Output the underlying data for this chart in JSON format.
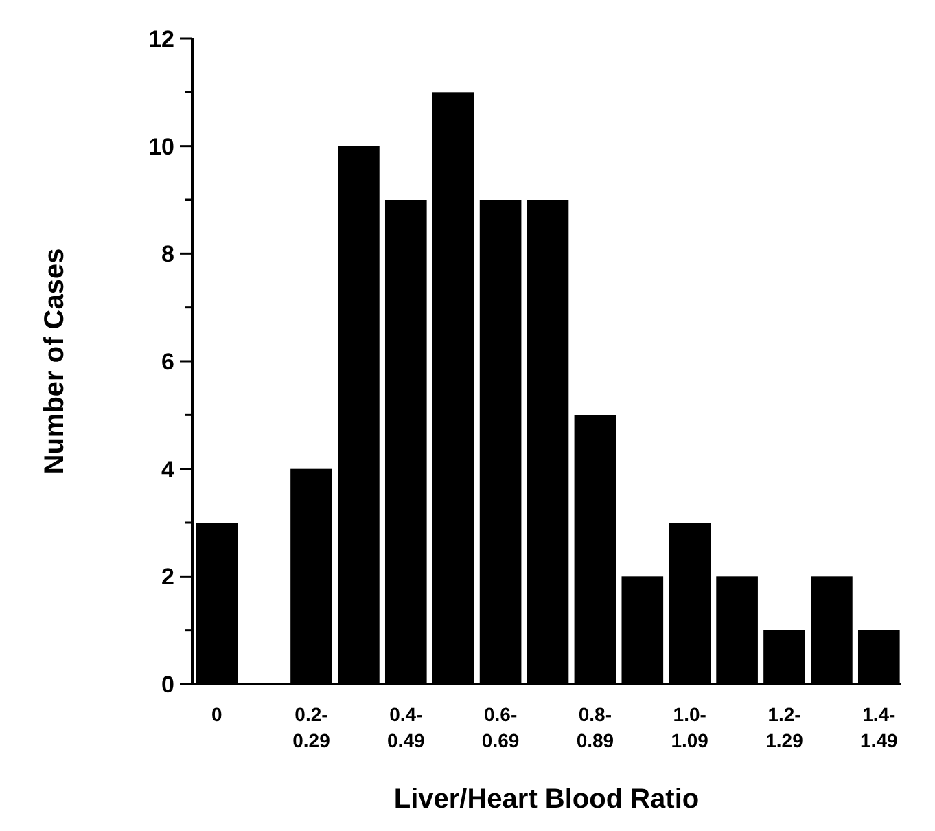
{
  "chart_data": {
    "type": "bar",
    "xlabel": "Liver/Heart Blood Ratio",
    "ylabel": "Number of Cases",
    "categories": [
      "0",
      null,
      "0.2-0.29",
      null,
      "0.4-0.49",
      null,
      "0.6-0.69",
      null,
      "0.8-0.89",
      null,
      "1.0-1.09",
      null,
      "1.2-1.29",
      null,
      "1.4-1.49"
    ],
    "values": [
      3,
      0,
      4,
      10,
      9,
      11,
      9,
      9,
      5,
      2,
      3,
      2,
      1,
      2,
      1
    ],
    "color": "#000000",
    "ylim": [
      0,
      12
    ],
    "yticks": [
      0,
      {
        "value": 1,
        "label": null
      },
      2,
      {
        "value": 3,
        "label": null
      },
      4,
      {
        "value": 5,
        "label": null
      },
      6,
      {
        "value": 7,
        "label": null
      },
      8,
      {
        "value": 9,
        "label": null
      },
      10,
      {
        "value": 11,
        "label": null
      },
      12
    ],
    "grid": false
  }
}
